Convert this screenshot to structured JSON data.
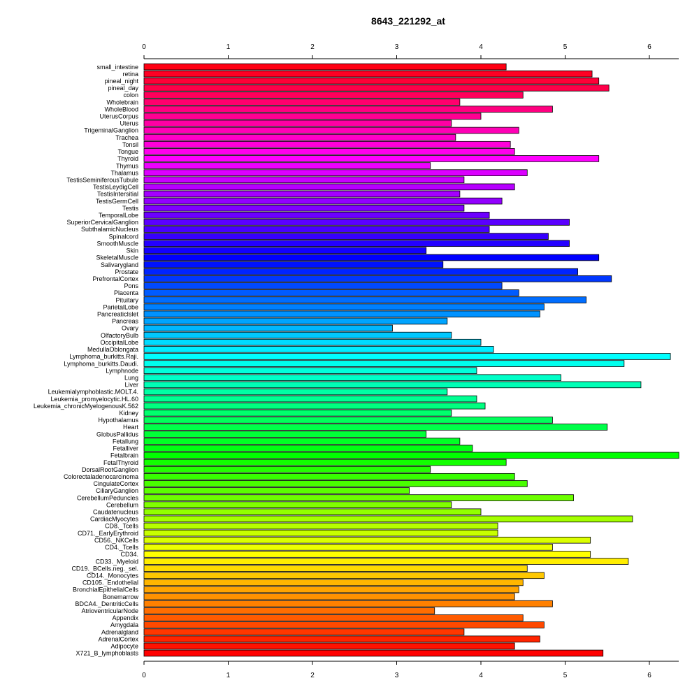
{
  "chart_data": {
    "type": "bar",
    "orientation": "horizontal",
    "title": "8643_221292_at",
    "xlabel": "",
    "ylabel": "",
    "xlim": [
      0,
      6.35
    ],
    "xticks": [
      0,
      1,
      2,
      3,
      4,
      5,
      6
    ],
    "grid": false,
    "legend": "none",
    "categories": [
      "small_intestine",
      "retina",
      "pineal_night",
      "pineal_day",
      "colon",
      "Wholebrain",
      "WholeBlood",
      "UterusCorpus",
      "Uterus",
      "TrigeminalGanglion",
      "Trachea",
      "Tonsil",
      "Tongue",
      "Thyroid",
      "Thymus",
      "Thalamus",
      "TestisSeminiferousTubule",
      "TestisLeydigCell",
      "TestisIntersitial",
      "TestisGermCell",
      "Testis",
      "TemporalLobe",
      "SuperiorCervicalGanglion",
      "SubthalamicNucleus",
      "Spinalcord",
      "SmoothMuscle",
      "Skin",
      "SkeletalMuscle",
      "Salivarygland",
      "Prostate",
      "PrefrontalCortex",
      "Pons",
      "Placenta",
      "Pituitary",
      "ParietalLobe",
      "PancreaticIslet",
      "Pancreas",
      "Ovary",
      "OlfactoryBulb",
      "OccipitalLobe",
      "MedullaOblongata",
      "Lymphoma_burkitts.Raji.",
      "Lymphoma_burkitts.Daudi.",
      "Lymphnode",
      "Lung",
      "Liver",
      "Leukemialymphoblastic.MOLT.4.",
      "Leukemia_promyelocytic.HL.60",
      "Leukemia_chronicMyelogenousK.562",
      "Kidney",
      "Hypothalamus",
      "Heart",
      "GlobusPallidus",
      "Fetallung",
      "Fetalliver",
      "Fetalbrain",
      "FetalThyroid",
      "DorsalRootGanglion",
      "Colorectaladenocarcinoma",
      "CingulateCortex",
      "CiliaryGanglion",
      "CerebellumPeduncles",
      "Cerebellum",
      "Caudatenucleus",
      "CardiacMyocytes",
      "CD8._Tcells",
      "CD71._EarlyErythroid",
      "CD56._NKCells",
      "CD4._Tcells",
      "CD34.",
      "CD33._Myeloid",
      "CD19._BCells.neg._sel.",
      "CD14._Monocytes",
      "CD105._Endothelial",
      "BronchialEpithelialCells",
      "Bonemarrow",
      "BDCA4._DentriticCells",
      "AtrioventricularNode",
      "Appendix",
      "Amygdala",
      "Adrenalgland",
      "AdrenalCortex",
      "Adipocyte",
      "X721_B_lymphoblasts"
    ],
    "values": [
      4.3,
      5.32,
      5.4,
      5.52,
      4.5,
      3.75,
      4.85,
      4.0,
      3.65,
      4.45,
      3.7,
      4.35,
      4.4,
      5.4,
      3.4,
      4.55,
      3.8,
      4.4,
      3.75,
      4.25,
      3.8,
      4.1,
      5.05,
      4.1,
      4.8,
      5.05,
      3.35,
      5.4,
      3.55,
      5.15,
      5.55,
      4.25,
      4.45,
      5.25,
      4.75,
      4.7,
      3.6,
      2.95,
      3.65,
      4.0,
      4.15,
      6.25,
      5.7,
      3.95,
      4.95,
      5.9,
      3.6,
      3.95,
      4.05,
      3.65,
      4.85,
      5.5,
      3.35,
      3.75,
      3.9,
      6.35,
      4.3,
      3.4,
      4.4,
      4.55,
      3.15,
      5.1,
      3.65,
      4.0,
      5.8,
      4.2,
      4.2,
      5.3,
      4.85,
      5.3,
      5.75,
      4.55,
      4.75,
      4.5,
      4.45,
      4.4,
      4.85,
      3.45,
      4.5,
      4.75,
      3.8,
      4.7,
      4.4,
      5.45
    ],
    "colors": "rainbow"
  }
}
